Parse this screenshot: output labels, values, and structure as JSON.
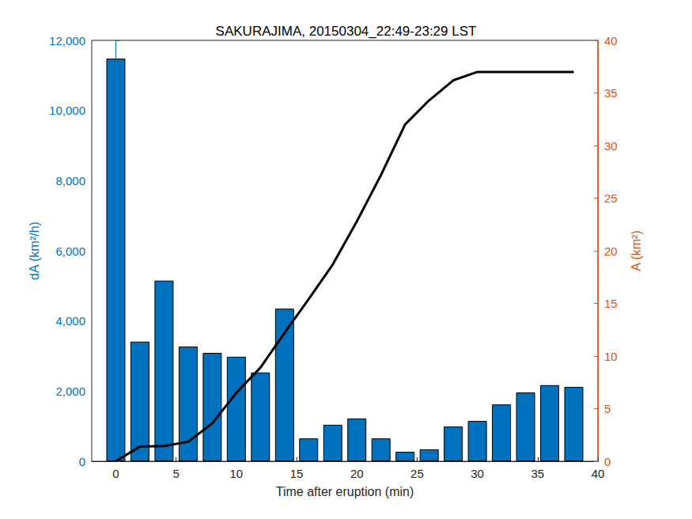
{
  "chart_data": {
    "type": "bar",
    "title": "SAKURAJIMA, 20150304_22:49-23:29 LST",
    "x_label": "Time after eruption (min)",
    "y_label": "dA (km²/h)",
    "y2_label": "A (km²)",
    "x": [
      0,
      2,
      4,
      6,
      8,
      10,
      12,
      14,
      16,
      18,
      20,
      22,
      24,
      26,
      28,
      30,
      32,
      34,
      36,
      38
    ],
    "xlim": [
      -2,
      40
    ],
    "xticks": [
      0,
      5,
      10,
      15,
      20,
      25,
      30,
      35,
      40
    ],
    "ylim": [
      0,
      12000
    ],
    "yticks": [
      0,
      2000,
      4000,
      6000,
      8000,
      10000,
      12000
    ],
    "y2lim": [
      0,
      40
    ],
    "y2ticks": [
      0,
      5,
      10,
      15,
      20,
      25,
      30,
      35,
      40
    ],
    "grid": false,
    "series": [
      {
        "name": "dA",
        "type": "bar",
        "color": "#0072bd",
        "values": [
          11480,
          3410,
          5150,
          3270,
          3090,
          2980,
          2530,
          4350,
          650,
          1040,
          1220,
          650,
          270,
          340,
          990,
          1150,
          1620,
          1960,
          2170,
          2120
        ]
      },
      {
        "name": "A",
        "type": "line",
        "axis": "y2",
        "color": "#000000",
        "values": [
          0,
          1.4,
          1.45,
          1.85,
          3.6,
          6.5,
          8.9,
          12.2,
          15.4,
          18.7,
          22.8,
          27.2,
          32.0,
          34.3,
          36.2,
          37.0,
          37.0,
          37.0,
          37.0,
          37.0
        ]
      }
    ]
  }
}
